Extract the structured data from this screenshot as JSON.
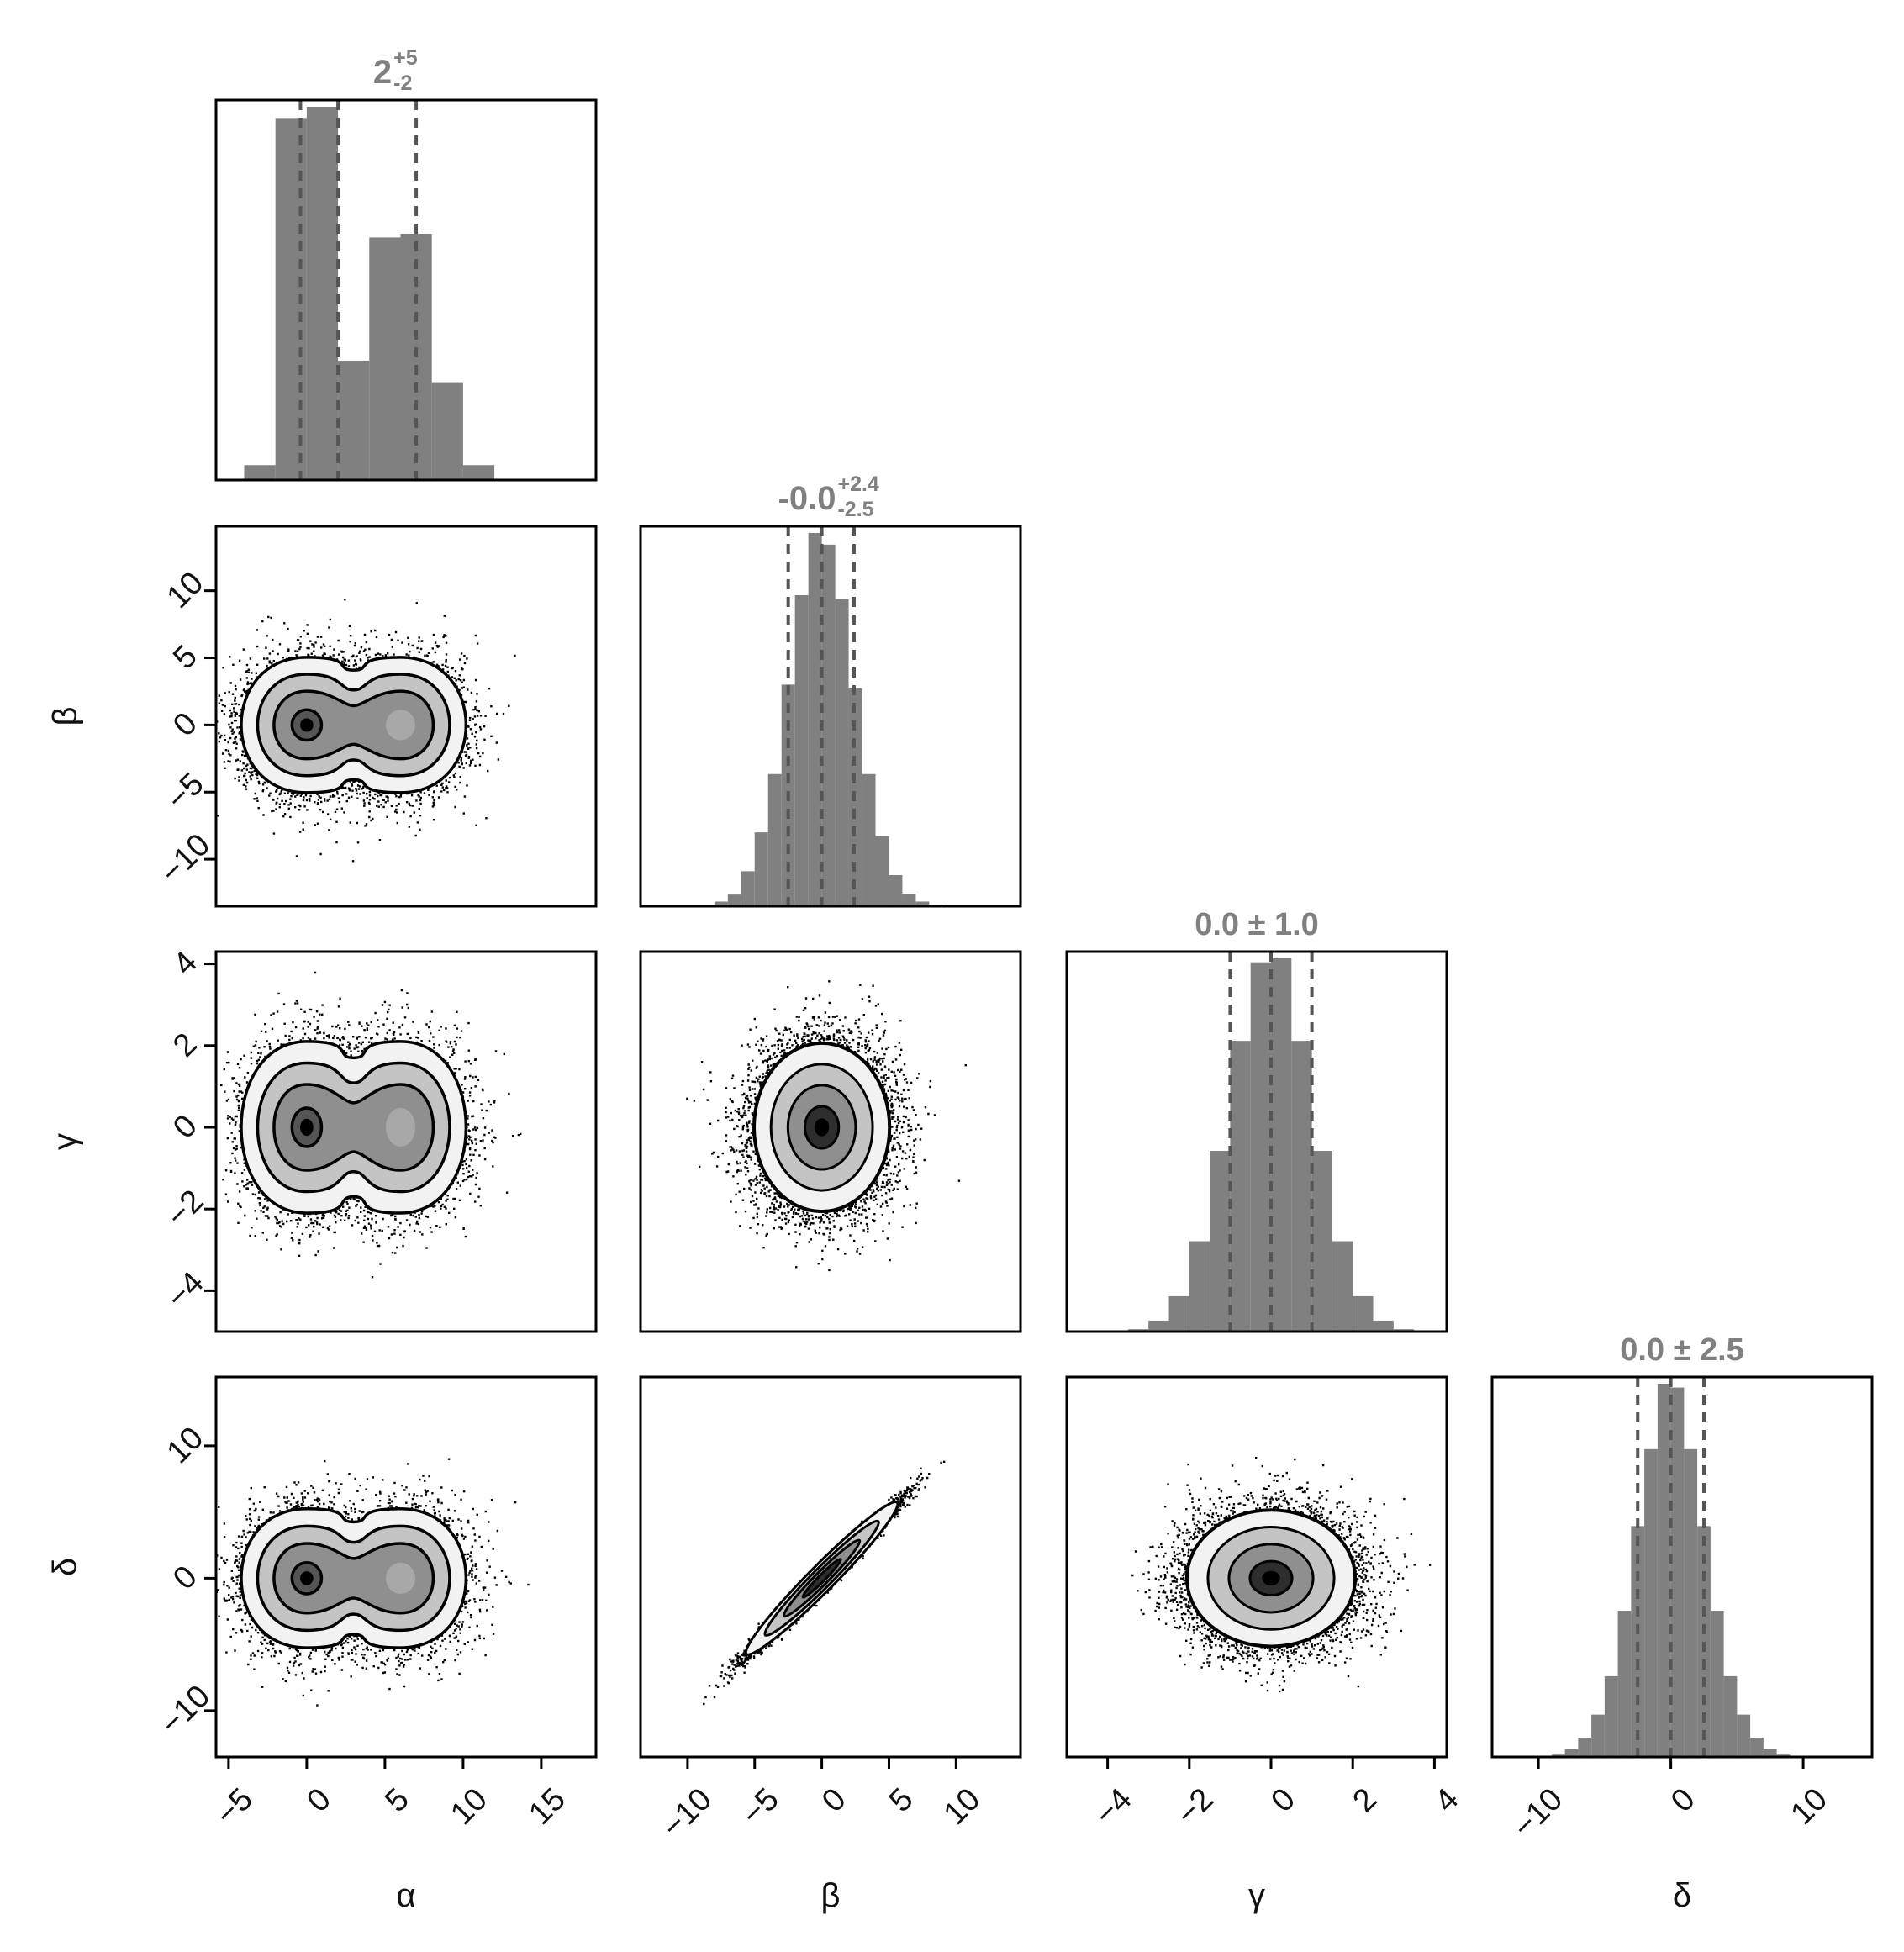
{
  "chart_data": {
    "type": "corner",
    "parameters": [
      "α",
      "β",
      "γ",
      "δ"
    ],
    "colors": {
      "hist": "#808080",
      "quantile_line": "#555555",
      "contour": "#000000",
      "frame": "#000000",
      "title": "#808080"
    },
    "axes": {
      "alpha": {
        "label": "α",
        "range": [
          -5.8,
          18.5
        ],
        "ticks": [
          -5,
          0,
          5,
          10,
          15
        ],
        "tick_labels": [
          "−5",
          "0",
          "5",
          "10",
          "15"
        ]
      },
      "beta": {
        "label": "β",
        "range": [
          -13.5,
          14.8
        ],
        "ticks": [
          -10,
          -5,
          0,
          5,
          10
        ],
        "tick_labels": [
          "−10",
          "−5",
          "0",
          "5",
          "10"
        ]
      },
      "gamma": {
        "label": "γ",
        "range": [
          -5,
          4.3
        ],
        "ticks": [
          -4,
          -2,
          0,
          2,
          4
        ],
        "tick_labels": [
          "−4",
          "−2",
          "0",
          "2",
          "4"
        ]
      },
      "delta": {
        "label": "δ",
        "range": [
          -13.5,
          15.2
        ],
        "ticks": [
          -10,
          0,
          10
        ],
        "tick_labels": [
          "−10",
          "0",
          "10"
        ]
      }
    },
    "diagonal": [
      {
        "param": "alpha",
        "title": {
          "main": "2",
          "upper": "+5",
          "lower": "-2"
        },
        "quantiles": [
          -0.4,
          2.0,
          7.0
        ],
        "bins": [
          {
            "x0": -4.0,
            "x1": -2.0,
            "h": 0.04
          },
          {
            "x0": -2.0,
            "x1": 0.0,
            "h": 0.97
          },
          {
            "x0": 0.0,
            "x1": 2.0,
            "h": 1.0
          },
          {
            "x0": 2.0,
            "x1": 4.0,
            "h": 0.32
          },
          {
            "x0": 4.0,
            "x1": 6.0,
            "h": 0.65
          },
          {
            "x0": 6.0,
            "x1": 8.0,
            "h": 0.66
          },
          {
            "x0": 8.0,
            "x1": 10.0,
            "h": 0.26
          },
          {
            "x0": 10.0,
            "x1": 12.0,
            "h": 0.04
          }
        ]
      },
      {
        "param": "beta",
        "title": {
          "main": "-0.0",
          "upper": "+2.4",
          "lower": "-2.5"
        },
        "quantiles": [
          -2.5,
          0.0,
          2.4
        ],
        "bins": [
          {
            "x0": -9.0,
            "x1": -8.0,
            "h": 0.003
          },
          {
            "x0": -8.0,
            "x1": -7.0,
            "h": 0.012
          },
          {
            "x0": -7.0,
            "x1": -6.0,
            "h": 0.03
          },
          {
            "x0": -6.0,
            "x1": -5.0,
            "h": 0.09
          },
          {
            "x0": -5.0,
            "x1": -4.0,
            "h": 0.19
          },
          {
            "x0": -4.0,
            "x1": -3.0,
            "h": 0.34
          },
          {
            "x0": -3.0,
            "x1": -2.0,
            "h": 0.57
          },
          {
            "x0": -2.0,
            "x1": -1.0,
            "h": 0.8
          },
          {
            "x0": -1.0,
            "x1": 0.0,
            "h": 0.96
          },
          {
            "x0": 0.0,
            "x1": 1.0,
            "h": 0.93
          },
          {
            "x0": 1.0,
            "x1": 2.0,
            "h": 0.79
          },
          {
            "x0": 2.0,
            "x1": 3.0,
            "h": 0.56
          },
          {
            "x0": 3.0,
            "x1": 4.0,
            "h": 0.34
          },
          {
            "x0": 4.0,
            "x1": 5.0,
            "h": 0.18
          },
          {
            "x0": 5.0,
            "x1": 6.0,
            "h": 0.08
          },
          {
            "x0": 6.0,
            "x1": 7.0,
            "h": 0.032
          },
          {
            "x0": 7.0,
            "x1": 8.0,
            "h": 0.012
          },
          {
            "x0": 8.0,
            "x1": 9.0,
            "h": 0.004
          }
        ]
      },
      {
        "param": "gamma",
        "title": {
          "text": "0.0 ± 1.0"
        },
        "quantiles": [
          -1.0,
          0.0,
          1.0
        ],
        "bins": [
          {
            "x0": -3.5,
            "x1": -3.0,
            "h": 0.006
          },
          {
            "x0": -3.0,
            "x1": -2.5,
            "h": 0.028
          },
          {
            "x0": -2.5,
            "x1": -2.0,
            "h": 0.09
          },
          {
            "x0": -2.0,
            "x1": -1.5,
            "h": 0.23
          },
          {
            "x0": -1.5,
            "x1": -1.0,
            "h": 0.46
          },
          {
            "x0": -1.0,
            "x1": -0.5,
            "h": 0.74
          },
          {
            "x0": -0.5,
            "x1": 0.0,
            "h": 0.94
          },
          {
            "x0": 0.0,
            "x1": 0.5,
            "h": 0.95
          },
          {
            "x0": 0.5,
            "x1": 1.0,
            "h": 0.74
          },
          {
            "x0": 1.0,
            "x1": 1.5,
            "h": 0.46
          },
          {
            "x0": 1.5,
            "x1": 2.0,
            "h": 0.23
          },
          {
            "x0": 2.0,
            "x1": 2.5,
            "h": 0.09
          },
          {
            "x0": 2.5,
            "x1": 3.0,
            "h": 0.028
          },
          {
            "x0": 3.0,
            "x1": 3.5,
            "h": 0.006
          }
        ]
      },
      {
        "param": "delta",
        "title": {
          "text": "0.0 ± 2.5"
        },
        "quantiles": [
          -2.5,
          0.0,
          2.5
        ],
        "bins": [
          {
            "x0": -9.0,
            "x1": -8.0,
            "h": 0.006
          },
          {
            "x0": -8.0,
            "x1": -7.0,
            "h": 0.02
          },
          {
            "x0": -7.0,
            "x1": -6.0,
            "h": 0.05
          },
          {
            "x0": -6.0,
            "x1": -5.0,
            "h": 0.11
          },
          {
            "x0": -5.0,
            "x1": -4.0,
            "h": 0.21
          },
          {
            "x0": -4.0,
            "x1": -3.0,
            "h": 0.38
          },
          {
            "x0": -3.0,
            "x1": -2.0,
            "h": 0.6
          },
          {
            "x0": -2.0,
            "x1": -1.0,
            "h": 0.8
          },
          {
            "x0": -1.0,
            "x1": 0.0,
            "h": 0.97
          },
          {
            "x0": 0.0,
            "x1": 1.0,
            "h": 0.96
          },
          {
            "x0": 1.0,
            "x1": 2.0,
            "h": 0.8
          },
          {
            "x0": 2.0,
            "x1": 3.0,
            "h": 0.6
          },
          {
            "x0": 3.0,
            "x1": 4.0,
            "h": 0.38
          },
          {
            "x0": 4.0,
            "x1": 5.0,
            "h": 0.21
          },
          {
            "x0": 5.0,
            "x1": 6.0,
            "h": 0.11
          },
          {
            "x0": 6.0,
            "x1": 7.0,
            "h": 0.05
          },
          {
            "x0": 7.0,
            "x1": 8.0,
            "h": 0.02
          },
          {
            "x0": 8.0,
            "x1": 9.0,
            "h": 0.006
          }
        ]
      }
    ],
    "pairs": [
      {
        "x": "alpha",
        "y": "beta",
        "shape": "bimodal",
        "components": [
          {
            "mx": 0,
            "my": 0,
            "sx": 2.0,
            "sy": 2.4,
            "weight": 0.55
          },
          {
            "mx": 6,
            "my": 0,
            "sx": 2.0,
            "sy": 2.4,
            "weight": 0.45
          }
        ],
        "correlation": 0
      },
      {
        "x": "alpha",
        "y": "gamma",
        "shape": "bimodal",
        "components": [
          {
            "mx": 0,
            "my": 0,
            "sx": 2.0,
            "sy": 1.0,
            "weight": 0.55
          },
          {
            "mx": 6,
            "my": 0,
            "sx": 2.0,
            "sy": 1.0,
            "weight": 0.45
          }
        ],
        "correlation": 0
      },
      {
        "x": "alpha",
        "y": "delta",
        "shape": "bimodal",
        "components": [
          {
            "mx": 0,
            "my": 0,
            "sx": 2.0,
            "sy": 2.5,
            "weight": 0.55
          },
          {
            "mx": 6,
            "my": 0,
            "sx": 2.0,
            "sy": 2.5,
            "weight": 0.45
          }
        ],
        "correlation": 0
      },
      {
        "x": "beta",
        "y": "gamma",
        "shape": "gaussian",
        "components": [
          {
            "mx": 0,
            "my": 0,
            "sx": 2.45,
            "sy": 1.0,
            "weight": 1.0
          }
        ],
        "correlation": 0
      },
      {
        "x": "beta",
        "y": "delta",
        "shape": "gaussian",
        "components": [
          {
            "mx": 0,
            "my": 0,
            "sx": 2.45,
            "sy": 2.5,
            "weight": 1.0
          }
        ],
        "correlation": 0.985
      },
      {
        "x": "gamma",
        "y": "delta",
        "shape": "gaussian",
        "components": [
          {
            "mx": 0,
            "my": 0,
            "sx": 1.0,
            "sy": 2.5,
            "weight": 1.0
          }
        ],
        "correlation": 0
      }
    ],
    "contour_levels_sigma": [
      0.5,
      1.0,
      1.5,
      2.0
    ]
  }
}
